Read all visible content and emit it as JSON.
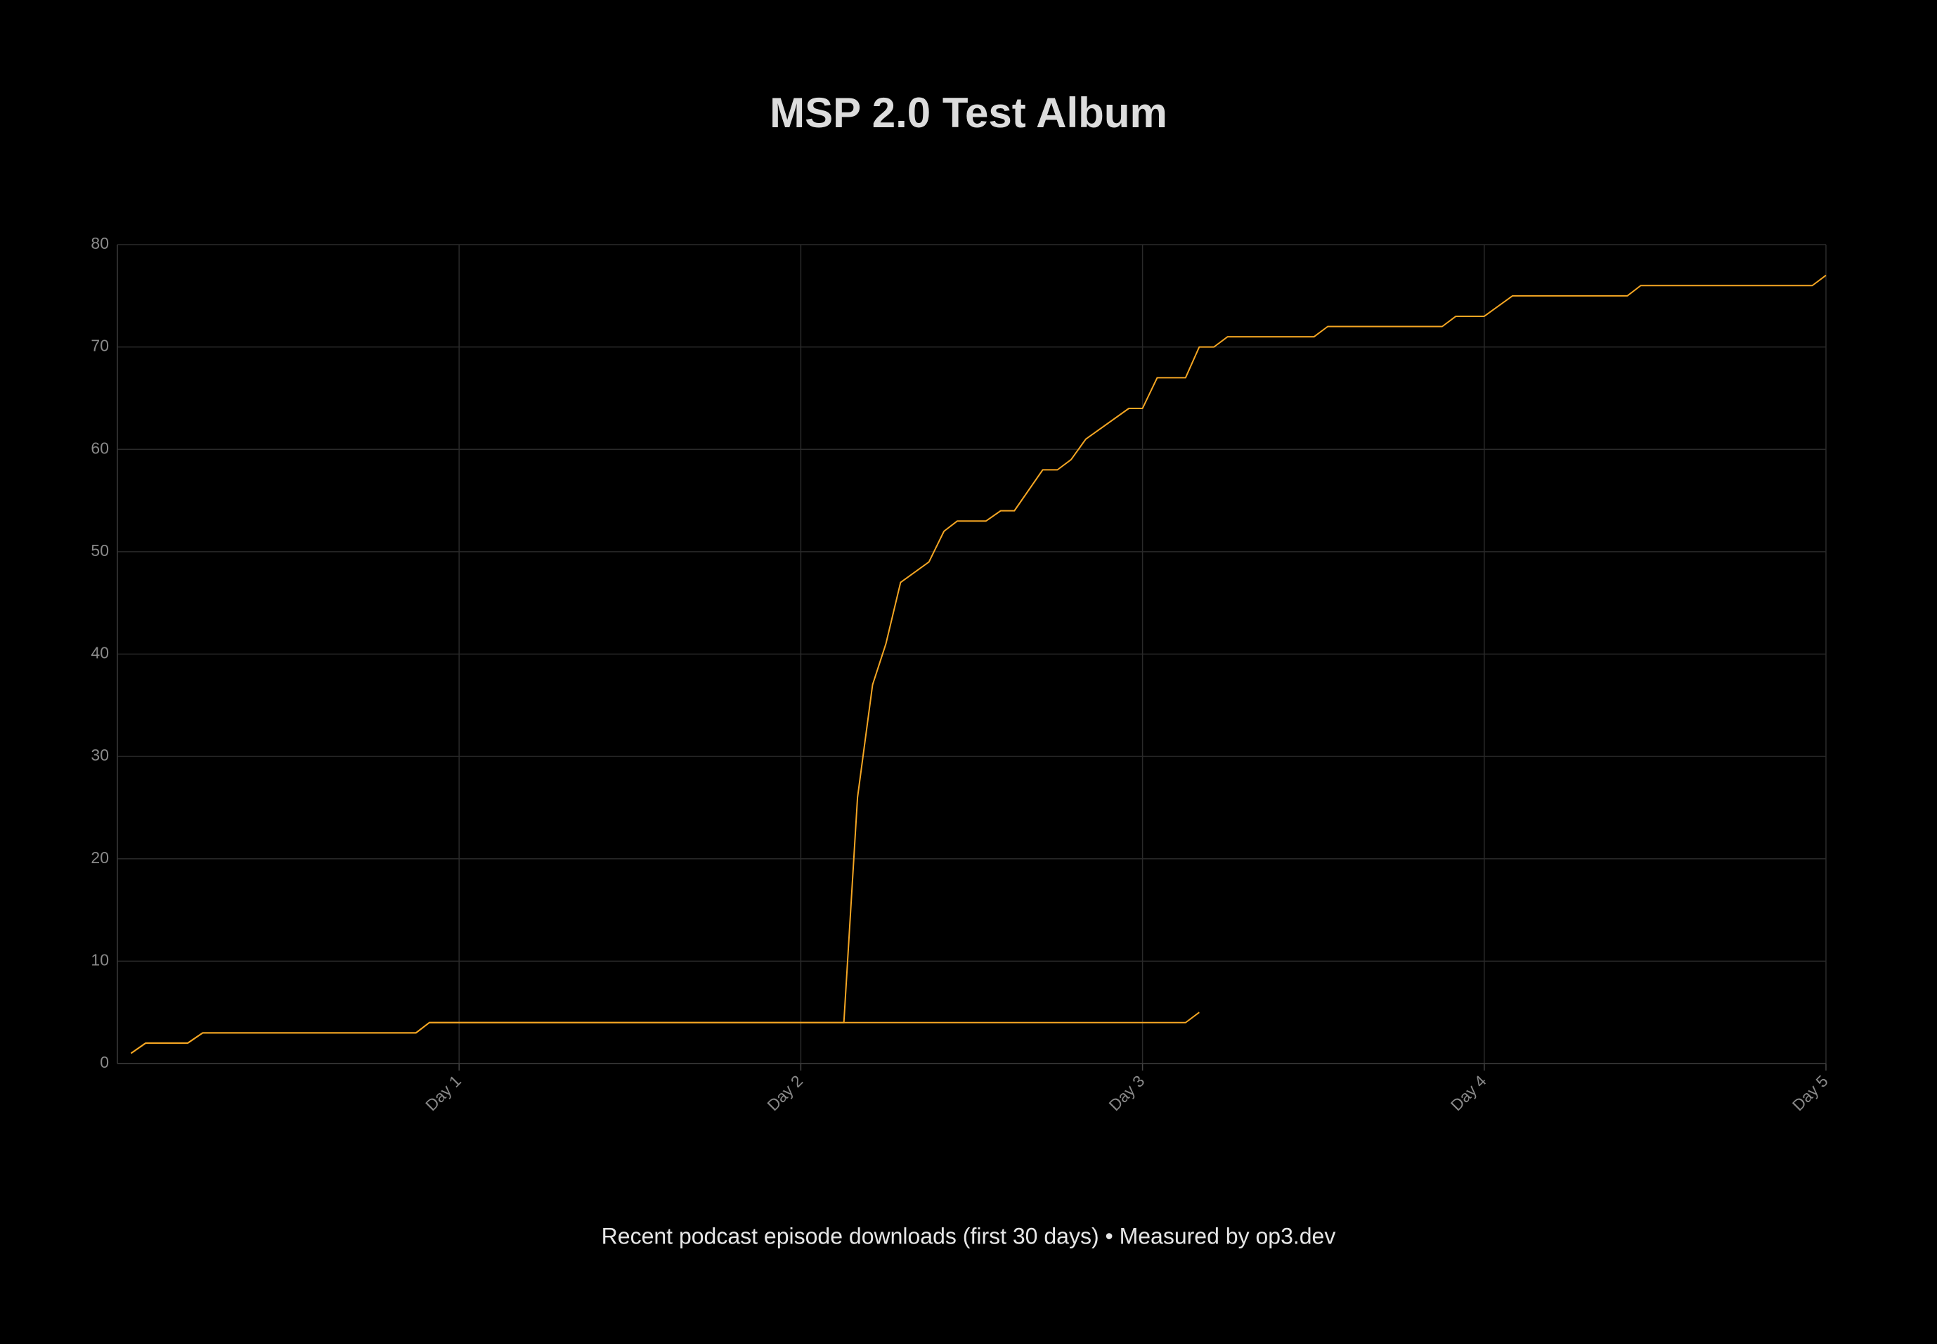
{
  "chart_data": {
    "type": "line",
    "title": "MSP 2.0 Test Album",
    "footer": "Recent podcast episode downloads (first 30 days) • Measured by op3.dev",
    "xlim": [
      0,
      5
    ],
    "xticks": [
      {
        "value": 1,
        "label": "Day 1"
      },
      {
        "value": 2,
        "label": "Day 2"
      },
      {
        "value": 3,
        "label": "Day 3"
      },
      {
        "value": 4,
        "label": "Day 4"
      },
      {
        "value": 5,
        "label": "Day 5"
      }
    ],
    "ylim": [
      0,
      80
    ],
    "yticks": [
      0,
      10,
      20,
      30,
      40,
      50,
      60,
      70,
      80
    ],
    "grid": true,
    "series": [
      {
        "color": "#f5a623",
        "x": [
          0.04,
          0.083,
          0.206,
          0.25,
          0.874,
          0.913,
          3.126,
          3.166
        ],
        "values": [
          1,
          2,
          2,
          3,
          3,
          4,
          4,
          5
        ]
      },
      {
        "color": "#f5a623",
        "x": [
          0.04,
          0.083,
          0.206,
          0.25,
          0.874,
          0.913,
          2.126,
          2.166,
          2.21,
          2.249,
          2.292,
          2.375,
          2.419,
          2.458,
          2.542,
          2.585,
          2.625,
          2.708,
          2.751,
          2.791,
          2.834,
          2.96,
          3.0,
          3.043,
          3.126,
          3.166,
          3.209,
          3.249,
          3.502,
          3.542,
          3.877,
          3.917,
          4.0,
          4.083,
          4.419,
          4.458,
          4.96,
          5.0
        ],
        "values": [
          1,
          2,
          2,
          3,
          3,
          4,
          4,
          26,
          37,
          41,
          47,
          49,
          52,
          53,
          53,
          54,
          54,
          58,
          58,
          59,
          61,
          64,
          64,
          67,
          67,
          70,
          70,
          71,
          71,
          72,
          72,
          73,
          73,
          75,
          75,
          76,
          76,
          77
        ]
      }
    ]
  }
}
